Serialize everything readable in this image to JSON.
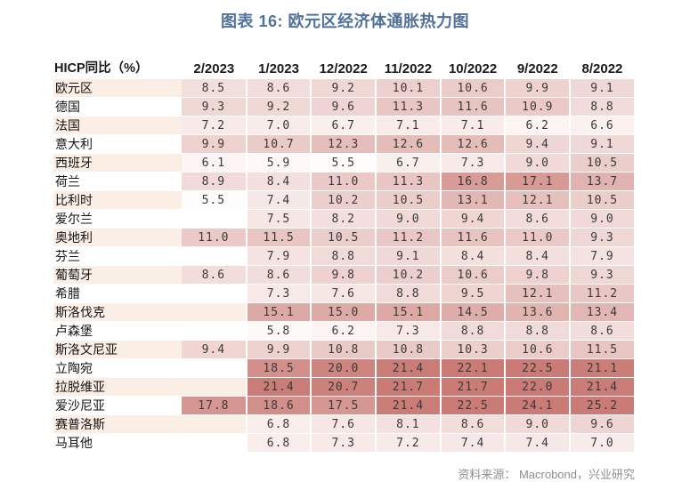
{
  "title": "图表 16: 欧元区经济体通胀热力图",
  "source": "资料来源： Macrobond，兴业研究",
  "colors": {
    "title_text": "#51719B",
    "source_text": "#8E8E8E",
    "value_text": "#3A3A3A",
    "label_text": "#141414",
    "row_stripe_odd": "#FBEEE4",
    "row_stripe_even": "#FFFFFF",
    "gridline": "#FFFFFF"
  },
  "chart_data": {
    "type": "heatmap",
    "title": "图表 16: 欧元区经济体通胀热力图",
    "corner_label": "HICP同比（%）",
    "columns": [
      "2/2023",
      "1/2023",
      "12/2022",
      "11/2022",
      "10/2022",
      "9/2022",
      "8/2022"
    ],
    "rows": [
      {
        "label": "欧元区",
        "values": [
          8.5,
          8.6,
          9.2,
          10.1,
          10.6,
          9.9,
          9.1
        ]
      },
      {
        "label": "德国",
        "values": [
          9.3,
          9.2,
          9.6,
          11.3,
          11.6,
          10.9,
          8.8
        ]
      },
      {
        "label": "法国",
        "values": [
          7.2,
          7.0,
          6.7,
          7.1,
          7.1,
          6.2,
          6.6
        ]
      },
      {
        "label": "意大利",
        "values": [
          9.9,
          10.7,
          12.3,
          12.6,
          12.6,
          9.4,
          9.1
        ]
      },
      {
        "label": "西班牙",
        "values": [
          6.1,
          5.9,
          5.5,
          6.7,
          7.3,
          9.0,
          10.5
        ]
      },
      {
        "label": "荷兰",
        "values": [
          8.9,
          8.4,
          11.0,
          11.3,
          16.8,
          17.1,
          13.7
        ]
      },
      {
        "label": "比利时",
        "values": [
          5.5,
          7.4,
          10.2,
          10.5,
          13.1,
          12.1,
          10.5
        ]
      },
      {
        "label": "爱尔兰",
        "values": [
          null,
          7.5,
          8.2,
          9.0,
          9.4,
          8.6,
          9.0
        ]
      },
      {
        "label": "奥地利",
        "values": [
          11.0,
          11.5,
          10.5,
          11.2,
          11.6,
          11.0,
          9.3
        ]
      },
      {
        "label": "芬兰",
        "values": [
          null,
          7.9,
          8.8,
          9.1,
          8.4,
          8.4,
          7.9
        ]
      },
      {
        "label": "葡萄牙",
        "values": [
          8.6,
          8.6,
          9.8,
          10.2,
          10.6,
          9.8,
          9.3
        ]
      },
      {
        "label": "希腊",
        "values": [
          null,
          7.3,
          7.6,
          8.8,
          9.5,
          12.1,
          11.2
        ]
      },
      {
        "label": "斯洛伐克",
        "values": [
          null,
          15.1,
          15.0,
          15.1,
          14.5,
          13.6,
          13.4
        ]
      },
      {
        "label": "卢森堡",
        "values": [
          null,
          5.8,
          6.2,
          7.3,
          8.8,
          8.8,
          8.6
        ]
      },
      {
        "label": "斯洛文尼亚",
        "values": [
          9.4,
          9.9,
          10.8,
          10.8,
          10.3,
          10.6,
          11.5
        ]
      },
      {
        "label": "立陶宛",
        "values": [
          null,
          18.5,
          20.0,
          21.4,
          22.1,
          22.5,
          21.1
        ]
      },
      {
        "label": "拉脱维亚",
        "values": [
          null,
          21.4,
          20.7,
          21.7,
          21.7,
          22.0,
          21.4
        ]
      },
      {
        "label": "爱沙尼亚",
        "values": [
          17.8,
          18.6,
          17.5,
          21.4,
          22.5,
          24.1,
          25.2
        ]
      },
      {
        "label": "赛普洛斯",
        "values": [
          null,
          6.8,
          7.6,
          8.1,
          8.6,
          9.0,
          9.6
        ]
      },
      {
        "label": "马耳他",
        "values": [
          null,
          6.8,
          7.3,
          7.2,
          7.4,
          7.4,
          7.0
        ]
      }
    ],
    "value_format": "one_decimal",
    "color_scale": {
      "min_value": 5.5,
      "max_value": 21.5,
      "gamma": 0.85,
      "min_color": "#FFFDFC",
      "max_color": "#CA7B75",
      "note": "values above max_value clamp to max_color"
    },
    "legend": "none",
    "grid": "white cell separators",
    "row_striping": [
      "#FBEEE4",
      "#FFFFFF"
    ]
  }
}
